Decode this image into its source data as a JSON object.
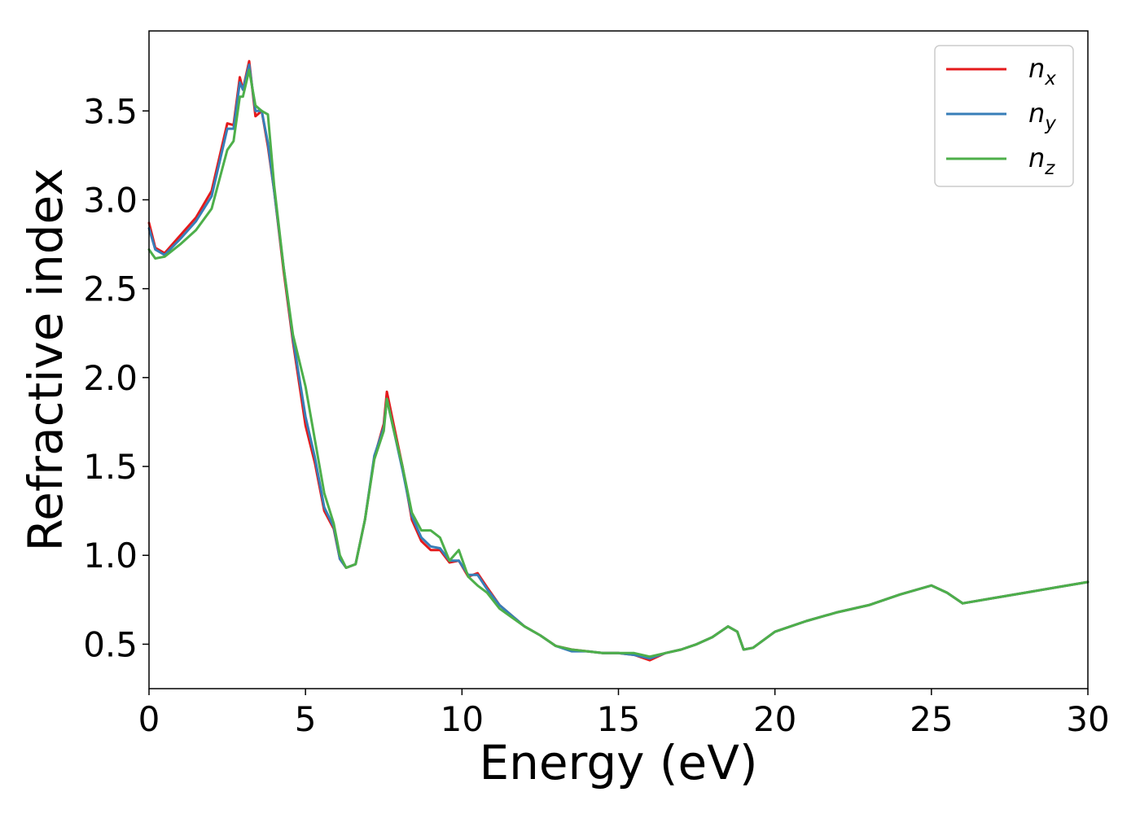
{
  "chart_data": {
    "type": "line",
    "xlabel": "Energy (eV)",
    "ylabel": "Refractive index",
    "xlim": [
      0,
      30
    ],
    "ylim": [
      0.25,
      3.95
    ],
    "xticks": [
      0,
      5,
      10,
      15,
      20,
      25,
      30
    ],
    "xtick_labels": [
      "0",
      "5",
      "10",
      "15",
      "20",
      "25",
      "30"
    ],
    "yticks": [
      0.5,
      1.0,
      1.5,
      2.0,
      2.5,
      3.0,
      3.5
    ],
    "ytick_labels": [
      "0.5",
      "1.0",
      "1.5",
      "2.0",
      "2.5",
      "3.0",
      "3.5"
    ],
    "grid": false,
    "legend_position": "top-right",
    "series": [
      {
        "name": "n",
        "subscript": "x",
        "color": "#e41a1c",
        "x": [
          0,
          0.2,
          0.5,
          1.0,
          1.5,
          2.0,
          2.5,
          2.7,
          2.9,
          3.0,
          3.2,
          3.4,
          3.6,
          3.8,
          4.0,
          4.3,
          4.6,
          5.0,
          5.3,
          5.6,
          5.9,
          6.1,
          6.3,
          6.6,
          6.9,
          7.2,
          7.5,
          7.6,
          7.8,
          8.1,
          8.4,
          8.7,
          9.0,
          9.3,
          9.6,
          9.9,
          10.2,
          10.5,
          10.8,
          11.2,
          11.6,
          12.0,
          12.5,
          13.0,
          13.5,
          14.0,
          14.5,
          15.0,
          15.5,
          16.0,
          16.5,
          17.0,
          17.5,
          18.0,
          18.5,
          18.8,
          19.0,
          19.3,
          20.0,
          21.0,
          22.0,
          23.0,
          24.0,
          25.0,
          25.5,
          26.0,
          27.0,
          28.0,
          29.0,
          30.0
        ],
        "y": [
          2.87,
          2.73,
          2.7,
          2.8,
          2.9,
          3.05,
          3.43,
          3.42,
          3.69,
          3.62,
          3.78,
          3.47,
          3.5,
          3.3,
          3.05,
          2.6,
          2.2,
          1.73,
          1.52,
          1.25,
          1.15,
          0.98,
          0.93,
          0.95,
          1.2,
          1.55,
          1.74,
          1.92,
          1.75,
          1.5,
          1.2,
          1.08,
          1.03,
          1.03,
          0.96,
          0.97,
          0.88,
          0.9,
          0.82,
          0.72,
          0.66,
          0.6,
          0.55,
          0.49,
          0.47,
          0.46,
          0.45,
          0.45,
          0.44,
          0.41,
          0.45,
          0.47,
          0.5,
          0.54,
          0.6,
          0.57,
          0.47,
          0.48,
          0.57,
          0.63,
          0.68,
          0.72,
          0.78,
          0.83,
          0.79,
          0.73,
          0.76,
          0.79,
          0.82,
          0.85
        ]
      },
      {
        "name": "n",
        "subscript": "y",
        "color": "#377eb8",
        "x": [
          0,
          0.2,
          0.5,
          1.0,
          1.5,
          2.0,
          2.5,
          2.7,
          2.9,
          3.0,
          3.2,
          3.4,
          3.6,
          3.8,
          4.0,
          4.3,
          4.6,
          5.0,
          5.3,
          5.6,
          5.9,
          6.1,
          6.3,
          6.6,
          6.9,
          7.2,
          7.5,
          7.6,
          7.8,
          8.1,
          8.4,
          8.7,
          9.0,
          9.3,
          9.6,
          9.9,
          10.2,
          10.5,
          10.8,
          11.2,
          11.6,
          12.0,
          12.5,
          13.0,
          13.5,
          14.0,
          14.5,
          15.0,
          15.5,
          16.0,
          16.5,
          17.0,
          17.5,
          18.0,
          18.5,
          18.8,
          19.0,
          19.3,
          20.0,
          21.0,
          22.0,
          23.0,
          24.0,
          25.0,
          25.5,
          26.0,
          27.0,
          28.0,
          29.0,
          30.0
        ],
        "y": [
          2.84,
          2.72,
          2.69,
          2.78,
          2.88,
          3.02,
          3.4,
          3.4,
          3.66,
          3.62,
          3.76,
          3.5,
          3.5,
          3.32,
          3.05,
          2.62,
          2.22,
          1.78,
          1.55,
          1.27,
          1.16,
          0.98,
          0.93,
          0.95,
          1.2,
          1.56,
          1.72,
          1.88,
          1.72,
          1.48,
          1.22,
          1.1,
          1.05,
          1.04,
          0.97,
          0.97,
          0.89,
          0.89,
          0.81,
          0.72,
          0.66,
          0.6,
          0.55,
          0.49,
          0.46,
          0.46,
          0.45,
          0.45,
          0.44,
          0.42,
          0.45,
          0.47,
          0.5,
          0.54,
          0.6,
          0.57,
          0.47,
          0.48,
          0.57,
          0.63,
          0.68,
          0.72,
          0.78,
          0.83,
          0.79,
          0.73,
          0.76,
          0.79,
          0.82,
          0.85
        ]
      },
      {
        "name": "n",
        "subscript": "z",
        "color": "#4daf4a",
        "x": [
          0,
          0.2,
          0.5,
          1.0,
          1.5,
          2.0,
          2.5,
          2.7,
          2.9,
          3.0,
          3.2,
          3.4,
          3.6,
          3.8,
          4.0,
          4.3,
          4.6,
          5.0,
          5.3,
          5.6,
          5.9,
          6.1,
          6.3,
          6.6,
          6.9,
          7.2,
          7.5,
          7.6,
          7.8,
          8.1,
          8.4,
          8.7,
          9.0,
          9.3,
          9.6,
          9.9,
          10.2,
          10.5,
          10.8,
          11.2,
          11.6,
          12.0,
          12.5,
          13.0,
          13.5,
          14.0,
          14.5,
          15.0,
          15.5,
          16.0,
          16.5,
          17.0,
          17.5,
          18.0,
          18.5,
          18.8,
          19.0,
          19.3,
          20.0,
          21.0,
          22.0,
          23.0,
          24.0,
          25.0,
          25.5,
          26.0,
          27.0,
          28.0,
          29.0,
          30.0
        ],
        "y": [
          2.72,
          2.67,
          2.68,
          2.75,
          2.83,
          2.95,
          3.28,
          3.33,
          3.58,
          3.58,
          3.73,
          3.53,
          3.5,
          3.48,
          3.08,
          2.62,
          2.24,
          1.95,
          1.65,
          1.35,
          1.18,
          1.0,
          0.93,
          0.95,
          1.2,
          1.54,
          1.7,
          1.88,
          1.72,
          1.5,
          1.24,
          1.14,
          1.14,
          1.1,
          0.97,
          1.03,
          0.88,
          0.83,
          0.79,
          0.7,
          0.65,
          0.6,
          0.55,
          0.49,
          0.47,
          0.46,
          0.45,
          0.45,
          0.45,
          0.43,
          0.45,
          0.47,
          0.5,
          0.54,
          0.6,
          0.57,
          0.47,
          0.48,
          0.57,
          0.63,
          0.68,
          0.72,
          0.78,
          0.83,
          0.79,
          0.73,
          0.76,
          0.79,
          0.82,
          0.85
        ]
      }
    ]
  }
}
